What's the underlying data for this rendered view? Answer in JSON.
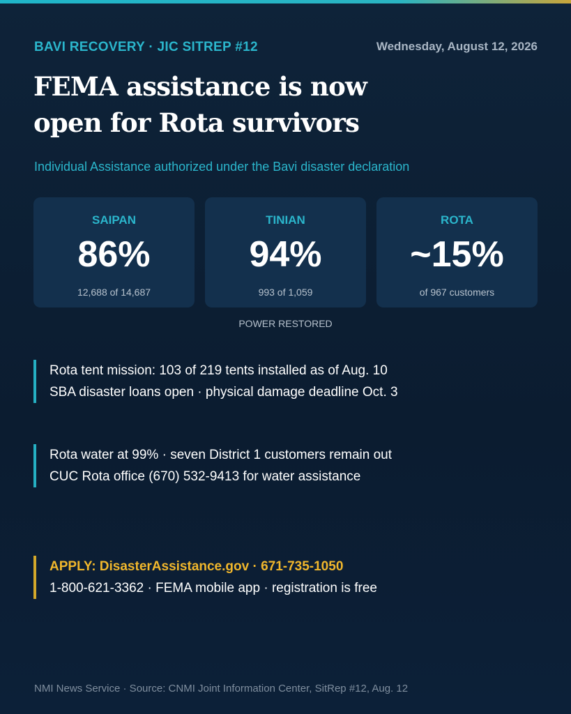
{
  "header": {
    "kicker": "BAVI RECOVERY · JIC SITREP #12",
    "date": "Wednesday, August 12, 2026",
    "title_lines": [
      "FEMA assistance is now",
      "open for Rota survivors"
    ],
    "subtitle": "Individual Assistance authorized under the Bavi disaster declaration"
  },
  "cards": [
    {
      "label": "SAIPAN",
      "value": "86%",
      "detail": "12,688 of 14,687"
    },
    {
      "label": "TINIAN",
      "value": "94%",
      "detail": "993 of 1,059"
    },
    {
      "label": "ROTA",
      "value": "~15%",
      "detail": "of 967 customers"
    }
  ],
  "cards_caption": "POWER RESTORED",
  "notes": [
    {
      "lines": [
        "Rota tent mission: 103 of 219 tents installed as of Aug. 10",
        "SBA disaster loans open · physical damage deadline Oct. 3"
      ]
    },
    {
      "lines": [
        "Rota water at 99% · seven District 1 customers remain out",
        "CUC Rota office (670) 532-9413 for water assistance"
      ]
    }
  ],
  "apply": {
    "headline": "APPLY: DisasterAssistance.gov · 671-735-1050",
    "detail": "1-800-621-3362 · FEMA mobile app · registration is free"
  },
  "footer": "NMI News Service · Source: CNMI Joint Information Center, SitRep #12, Aug. 12"
}
